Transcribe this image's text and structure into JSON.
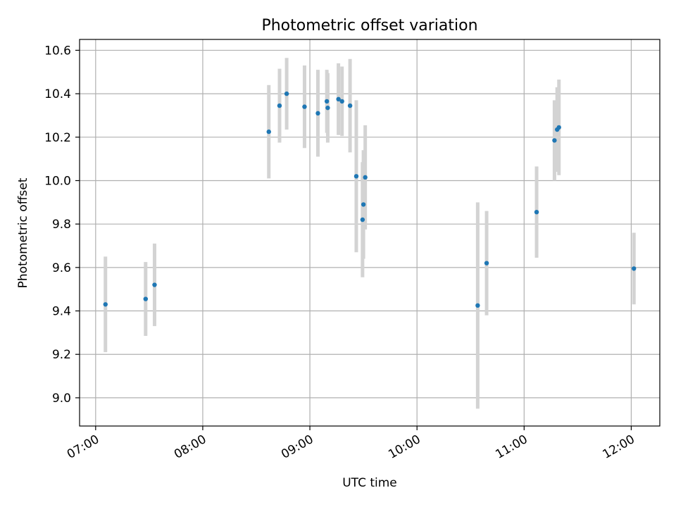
{
  "chart_data": {
    "type": "scatter",
    "title": "Photometric offset variation",
    "xlabel": "UTC time",
    "ylabel": "Photometric offset",
    "x_tick_labels": [
      "07:00",
      "08:00",
      "09:00",
      "10:00",
      "11:00",
      "12:00"
    ],
    "x_tick_times": [
      "07:00",
      "08:00",
      "09:00",
      "10:00",
      "11:00",
      "12:00"
    ],
    "xlim": [
      "06:51",
      "12:16"
    ],
    "y_ticks": [
      9.0,
      9.2,
      9.4,
      9.6,
      9.8,
      10.0,
      10.2,
      10.4,
      10.6
    ],
    "y_tick_labels": [
      "9.0",
      "9.2",
      "9.4",
      "9.6",
      "9.8",
      "10.0",
      "10.2",
      "10.4",
      "10.6"
    ],
    "ylim": [
      8.87,
      10.65
    ],
    "grid": true,
    "points": [
      {
        "time": "07:05:30",
        "y": 9.43,
        "err": 0.22
      },
      {
        "time": "07:28:00",
        "y": 9.455,
        "err": 0.17
      },
      {
        "time": "07:33:00",
        "y": 9.52,
        "err": 0.19
      },
      {
        "time": "08:37:00",
        "y": 10.225,
        "err": 0.215
      },
      {
        "time": "08:43:00",
        "y": 10.345,
        "err": 0.17
      },
      {
        "time": "08:47:00",
        "y": 10.4,
        "err": 0.165
      },
      {
        "time": "08:57:00",
        "y": 10.34,
        "err": 0.19
      },
      {
        "time": "09:04:30",
        "y": 10.31,
        "err": 0.2
      },
      {
        "time": "09:09:30",
        "y": 10.365,
        "err": 0.145
      },
      {
        "time": "09:10:00",
        "y": 10.335,
        "err": 0.16
      },
      {
        "time": "09:16:00",
        "y": 10.375,
        "err": 0.165
      },
      {
        "time": "09:18:00",
        "y": 10.365,
        "err": 0.16
      },
      {
        "time": "09:22:30",
        "y": 10.345,
        "err": 0.215
      },
      {
        "time": "09:26:00",
        "y": 10.02,
        "err": 0.35
      },
      {
        "time": "09:30:00",
        "y": 9.89,
        "err": 0.25
      },
      {
        "time": "09:29:30",
        "y": 9.82,
        "err": 0.265
      },
      {
        "time": "09:31:00",
        "y": 10.015,
        "err": 0.24
      },
      {
        "time": "10:34:00",
        "y": 9.425,
        "err": 0.475
      },
      {
        "time": "10:39:00",
        "y": 9.62,
        "err": 0.24
      },
      {
        "time": "11:07:00",
        "y": 9.855,
        "err": 0.21
      },
      {
        "time": "11:17:00",
        "y": 10.185,
        "err": 0.185
      },
      {
        "time": "11:18:30",
        "y": 10.235,
        "err": 0.195
      },
      {
        "time": "11:19:30",
        "y": 10.245,
        "err": 0.22
      },
      {
        "time": "12:01:30",
        "y": 9.595,
        "err": 0.165
      }
    ],
    "marker_color": "#1f77b4",
    "errorbar_color": "#d3d3d3",
    "grid_color": "#b0b0b0"
  }
}
